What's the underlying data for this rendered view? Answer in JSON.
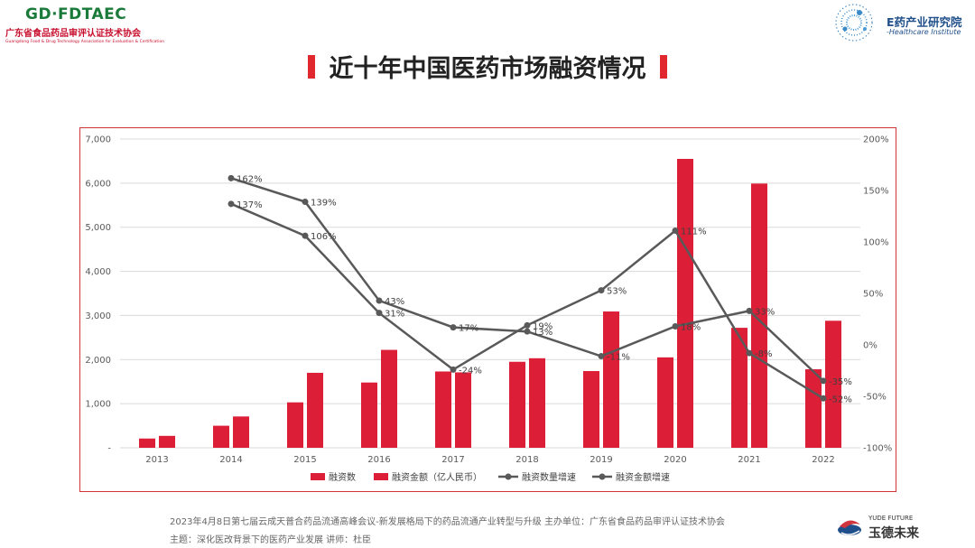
{
  "header": {
    "org_logo_text": "GD·FDTAEC",
    "org_name_cn": "广东省食品药品审评认证技术协会",
    "org_name_en": "Guangdong Food & Drug Technology Association for Evaluation & Certification",
    "institute_name_cn": "药产业研究院",
    "institute_name_en": "-Healthcare Institute",
    "institute_prefix": "E"
  },
  "title": "近十年中国医药市场融资情况",
  "footer": {
    "line1": "2023年4月8日第七届云成天普合药品流通高峰会议-新发展格局下的药品流通产业转型与升级     主办单位：广东省食品药品审评认证技术协会",
    "line2": "主题：深化医改背景下的医药产业发展  讲师：杜臣",
    "brand_en": "YUDE FUTURE",
    "brand_cn": "玉德未来"
  },
  "colors": {
    "bar": "#dc1e37",
    "line": "#595959",
    "accent": "#e0282e"
  },
  "chart_data": {
    "type": "bar",
    "categories": [
      "2013",
      "2014",
      "2015",
      "2016",
      "2017",
      "2018",
      "2019",
      "2020",
      "2021",
      "2022"
    ],
    "series": [
      {
        "name": "融资数",
        "kind": "bar",
        "axis": "left",
        "color": "#dc1e37",
        "values": [
          210,
          500,
          1030,
          1480,
          1730,
          1950,
          1740,
          2050,
          2720,
          1780
        ]
      },
      {
        "name": "融资金额（亿人民币）",
        "kind": "bar",
        "axis": "left",
        "color": "#dc1e37",
        "values": [
          270,
          710,
          1700,
          2220,
          1710,
          2030,
          3090,
          6550,
          5990,
          2880
        ]
      },
      {
        "name": "融资数量增速",
        "kind": "line",
        "axis": "right",
        "color": "#595959",
        "values": [
          null,
          137,
          106,
          31,
          -24,
          19,
          53,
          111,
          -8,
          -52
        ],
        "labels": [
          "",
          "137%",
          "106%",
          "31%",
          "-24%",
          "19%",
          "53%",
          "111%",
          "-8%",
          "-52%"
        ]
      },
      {
        "name": "融资金额增速",
        "kind": "line",
        "axis": "right",
        "color": "#595959",
        "values": [
          null,
          162,
          139,
          43,
          17,
          13,
          -11,
          18,
          33,
          -35
        ],
        "labels": [
          "",
          "162%",
          "139%",
          "43%",
          "17%",
          "13%",
          "-11%",
          "18%",
          "33%",
          "-35%"
        ]
      }
    ],
    "y_left": {
      "min": 0,
      "max": 7000,
      "ticks": [
        0,
        1000,
        2000,
        3000,
        4000,
        5000,
        6000,
        7000
      ],
      "tick_labels": [
        "-",
        "1,000",
        "2,000",
        "3,000",
        "4,000",
        "5,000",
        "6,000",
        "7,000"
      ]
    },
    "y_right": {
      "min": -100,
      "max": 200,
      "ticks": [
        -100,
        -50,
        0,
        50,
        100,
        150,
        200
      ],
      "tick_labels": [
        "-100%",
        "-50%",
        "0%",
        "50%",
        "100%",
        "150%",
        "200%"
      ]
    },
    "grid": true,
    "legend_position": "bottom"
  }
}
